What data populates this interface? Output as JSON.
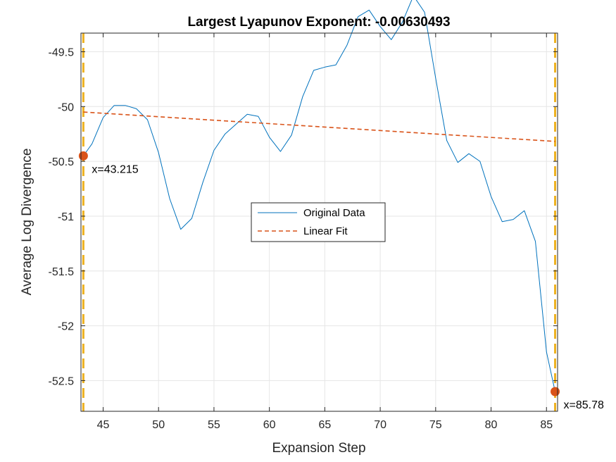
{
  "chart_data": {
    "type": "line",
    "title": "Largest Lyapunov Exponent: -0.00630493",
    "xlabel": "Expansion Step",
    "ylabel": "Average Log Divergence",
    "xlim": [
      43,
      86
    ],
    "ylim": [
      -52.78,
      -49.33
    ],
    "xticks": [
      45,
      50,
      55,
      60,
      65,
      70,
      75,
      80,
      85
    ],
    "yticks": [
      -52.5,
      -52,
      -51.5,
      -51,
      -50.5,
      -50,
      -49.5
    ],
    "xtick_labels": [
      "45",
      "50",
      "55",
      "60",
      "65",
      "70",
      "75",
      "80",
      "85"
    ],
    "ytick_labels": [
      "-52.5",
      "-52",
      "-51.5",
      "-51",
      "-50.5",
      "-50",
      "-49.5"
    ],
    "grid": true,
    "legend_position": "center",
    "series": [
      {
        "name": "Original Data",
        "color": "#0072BD",
        "style": "solid",
        "x": [
          43.215,
          44,
          45,
          46,
          47,
          48,
          49,
          50,
          51,
          52,
          53,
          54,
          55,
          56,
          57,
          58,
          59,
          60,
          61,
          62,
          63,
          64,
          65,
          66,
          67,
          68,
          69,
          70,
          71,
          72,
          73,
          74,
          75,
          76,
          77,
          78,
          79,
          80,
          81,
          82,
          83,
          84,
          85,
          85.78
        ],
        "y": [
          -50.45,
          -50.34,
          -50.1,
          -49.99,
          -49.99,
          -50.02,
          -50.12,
          -50.42,
          -50.84,
          -51.12,
          -51.02,
          -50.69,
          -50.4,
          -50.25,
          -50.16,
          -50.07,
          -50.09,
          -50.28,
          -50.41,
          -50.26,
          -49.91,
          -49.67,
          -49.64,
          -49.62,
          -49.44,
          -49.18,
          -49.12,
          -49.27,
          -49.39,
          -49.23,
          -48.99,
          -49.14,
          -49.74,
          -50.31,
          -50.51,
          -50.43,
          -50.5,
          -50.82,
          -51.05,
          -51.03,
          -50.95,
          -51.23,
          -52.24,
          -52.6
        ]
      },
      {
        "name": "Linear Fit",
        "color": "#D95319",
        "style": "dashed",
        "x": [
          43.215,
          85.78
        ],
        "y": [
          -50.05,
          -50.318
        ]
      }
    ],
    "annotations": [
      {
        "x": 43.215,
        "y": -50.45,
        "label": "x=43.215",
        "color": "#D95319"
      },
      {
        "x": 85.78,
        "y": -52.6,
        "label": "x=85.78",
        "color": "#D95319"
      }
    ],
    "vlines": [
      {
        "x": 43.215,
        "color": "#EDB120",
        "style": "dashed"
      },
      {
        "x": 85.78,
        "color": "#EDB120",
        "style": "dashed"
      }
    ]
  }
}
